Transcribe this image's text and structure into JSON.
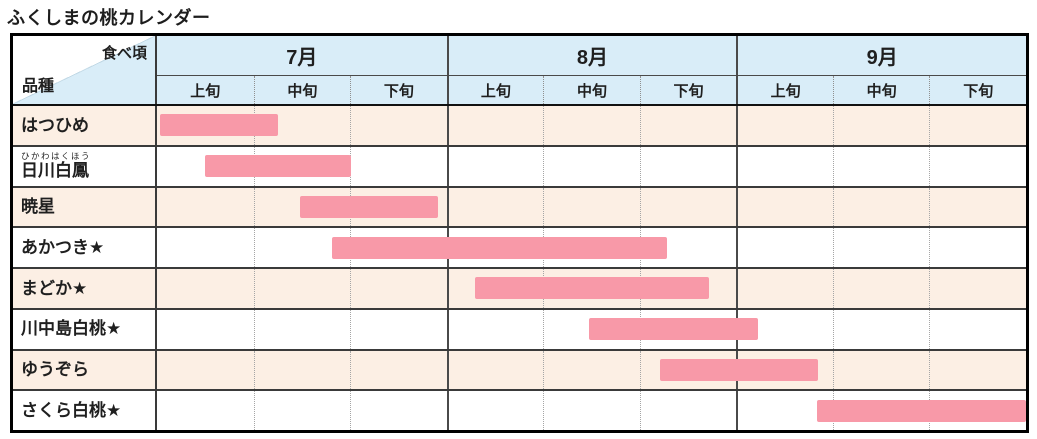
{
  "title": "ふくしまの桃カレンダー",
  "colors": {
    "header_blue": "#d9edf8",
    "row_peach": "#fcefe4",
    "row_white": "#ffffff",
    "bar_pink": "#f899a8",
    "outer_border": "#000000",
    "inner_line": "#3a3a3a"
  },
  "header": {
    "corner_top_label": "食べ頃",
    "corner_bottom_label": "品種",
    "months": [
      "7月",
      "8月",
      "9月"
    ],
    "periods": [
      "上旬",
      "中旬",
      "下旬"
    ]
  },
  "chart_data": {
    "type": "gantt",
    "title": "ふくしまの桃カレンダー",
    "x_axis": {
      "months": [
        "7月",
        "8月",
        "9月"
      ],
      "sub_periods_per_month": [
        "上旬",
        "中旬",
        "下旬"
      ],
      "unit": "one sub-column = one 旬 (10-day period); scale 0 = start of 7月上旬, 9 = end of 9月下旬",
      "range": [
        0,
        9
      ],
      "month_boundaries_units": [
        0,
        3,
        6,
        9
      ],
      "gridlines": "dotted between 旬, solid between months"
    },
    "bar_color": "#f899a8",
    "rows": [
      {
        "variety": "はつひめ",
        "furigana": "",
        "start": 0.03,
        "end": 1.25
      },
      {
        "variety": "日川白鳳",
        "furigana": "ひかわはくほう",
        "start": 0.5,
        "end": 2.01
      },
      {
        "variety": "暁星",
        "furigana": "",
        "start": 1.48,
        "end": 2.91
      },
      {
        "variety": "あかつき★",
        "furigana": "",
        "start": 1.81,
        "end": 5.28
      },
      {
        "variety": "まどか★",
        "furigana": "",
        "start": 3.29,
        "end": 5.72
      },
      {
        "variety": "川中島白桃★",
        "furigana": "",
        "start": 4.47,
        "end": 6.22
      },
      {
        "variety": "ゆうぞら",
        "furigana": "",
        "start": 5.21,
        "end": 6.85
      },
      {
        "variety": "さくら白桃★",
        "furigana": "",
        "start": 6.84,
        "end": 9.0
      }
    ]
  }
}
